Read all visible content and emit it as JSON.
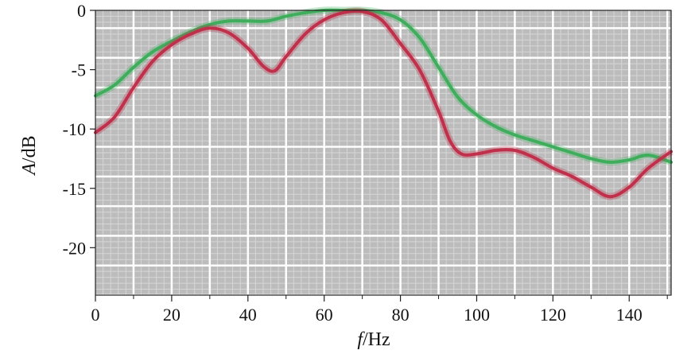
{
  "chart_data": {
    "type": "line",
    "title": "",
    "xlabel": {
      "symbol": "f",
      "unit": "/Hz"
    },
    "ylabel": {
      "symbol": "A",
      "unit": "/dB"
    },
    "xlim": [
      0,
      151
    ],
    "ylim": [
      -24,
      0
    ],
    "x_ticks": [
      0,
      20,
      40,
      60,
      80,
      100,
      120,
      140
    ],
    "y_ticks": [
      0,
      -5,
      -10,
      -15,
      -20
    ],
    "grid": true,
    "colors": {
      "plot_background": "#bcbcbc",
      "major_grid": "#ffffff",
      "minor_grid": "#d6d6d6",
      "series_red": "#c0304a",
      "series_green": "#3fae5c"
    },
    "series": [
      {
        "color": "#c0304a",
        "x": [
          0,
          5,
          10,
          15,
          20,
          25,
          30,
          35,
          40,
          44,
          47,
          50,
          55,
          60,
          65,
          70,
          75,
          80,
          85,
          90,
          93,
          96,
          100,
          105,
          110,
          115,
          120,
          125,
          130,
          135,
          140,
          145,
          151
        ],
        "y": [
          -10.3,
          -9.0,
          -6.5,
          -4.3,
          -2.9,
          -2.0,
          -1.5,
          -1.9,
          -3.2,
          -4.7,
          -5.1,
          -3.9,
          -2.0,
          -0.8,
          -0.2,
          -0.1,
          -0.8,
          -2.8,
          -5.0,
          -8.5,
          -11.0,
          -12.1,
          -12.1,
          -11.8,
          -11.8,
          -12.4,
          -13.3,
          -14.0,
          -14.9,
          -15.7,
          -14.9,
          -13.3,
          -11.9
        ]
      },
      {
        "color": "#3fae5c",
        "x": [
          0,
          5,
          10,
          15,
          20,
          25,
          30,
          35,
          40,
          45,
          50,
          55,
          60,
          65,
          70,
          75,
          80,
          85,
          90,
          95,
          100,
          105,
          110,
          115,
          120,
          125,
          130,
          135,
          140,
          145,
          151
        ],
        "y": [
          -7.2,
          -6.3,
          -4.8,
          -3.5,
          -2.6,
          -1.8,
          -1.2,
          -0.9,
          -0.9,
          -0.9,
          -0.5,
          -0.2,
          0.0,
          0.0,
          0.0,
          -0.2,
          -0.8,
          -2.3,
          -4.8,
          -7.3,
          -8.8,
          -9.8,
          -10.5,
          -11.0,
          -11.5,
          -12.0,
          -12.5,
          -12.8,
          -12.6,
          -12.2,
          -12.8
        ]
      }
    ]
  }
}
